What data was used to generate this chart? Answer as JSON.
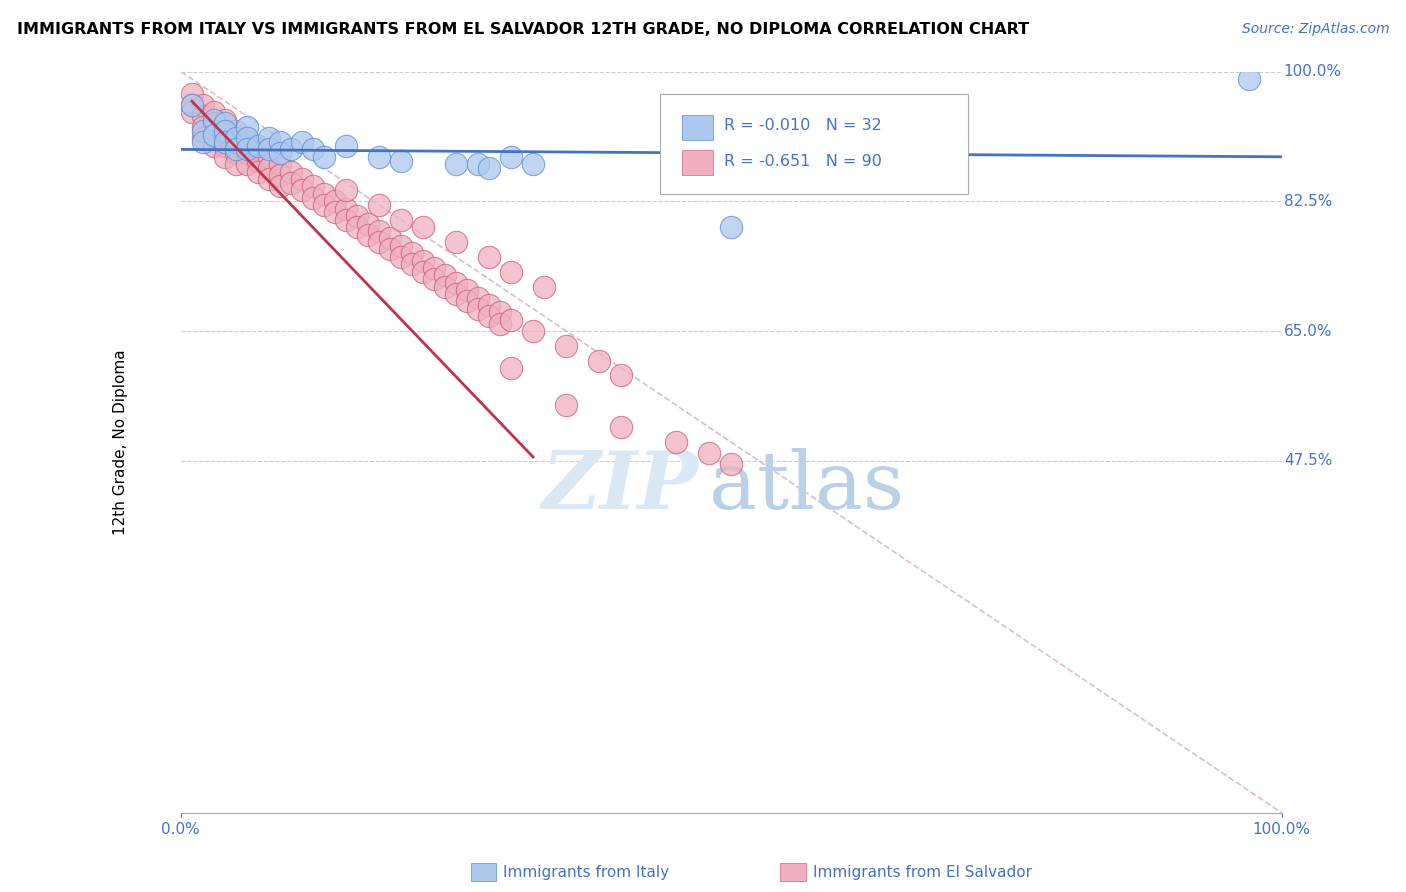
{
  "title": "IMMIGRANTS FROM ITALY VS IMMIGRANTS FROM EL SALVADOR 12TH GRADE, NO DIPLOMA CORRELATION CHART",
  "source": "Source: ZipAtlas.com",
  "ylabel": "12th Grade, No Diploma",
  "ytick_labels": [
    "100.0%",
    "82.5%",
    "65.0%",
    "47.5%"
  ],
  "ytick_values": [
    1.0,
    0.825,
    0.65,
    0.475
  ],
  "xlim": [
    0.0,
    1.0
  ],
  "ylim": [
    0.0,
    1.0
  ],
  "watermark_zip": "ZIP",
  "watermark_atlas": "atlas",
  "legend_italy_r": "R = -0.010",
  "legend_italy_n": "N = 32",
  "legend_salvador_r": "R = -0.651",
  "legend_salvador_n": "N = 90",
  "italy_color": "#adc8ee",
  "italy_edge_color": "#5a8fd4",
  "salvador_color": "#f0b0c0",
  "salvador_edge_color": "#cc607a",
  "italy_trend_color": "#4472c4",
  "salvador_trend_color": "#c0334d",
  "diagonal_color": "#ddbbcc",
  "grid_color": "#cccccc",
  "italy_scatter": [
    [
      0.01,
      0.955
    ],
    [
      0.02,
      0.92
    ],
    [
      0.02,
      0.905
    ],
    [
      0.03,
      0.935
    ],
    [
      0.03,
      0.915
    ],
    [
      0.04,
      0.93
    ],
    [
      0.04,
      0.92
    ],
    [
      0.04,
      0.905
    ],
    [
      0.05,
      0.91
    ],
    [
      0.05,
      0.895
    ],
    [
      0.06,
      0.925
    ],
    [
      0.06,
      0.91
    ],
    [
      0.06,
      0.895
    ],
    [
      0.07,
      0.9
    ],
    [
      0.08,
      0.91
    ],
    [
      0.08,
      0.895
    ],
    [
      0.09,
      0.905
    ],
    [
      0.09,
      0.89
    ],
    [
      0.1,
      0.895
    ],
    [
      0.11,
      0.905
    ],
    [
      0.12,
      0.895
    ],
    [
      0.13,
      0.885
    ],
    [
      0.15,
      0.9
    ],
    [
      0.18,
      0.885
    ],
    [
      0.2,
      0.88
    ],
    [
      0.25,
      0.875
    ],
    [
      0.27,
      0.875
    ],
    [
      0.28,
      0.87
    ],
    [
      0.3,
      0.885
    ],
    [
      0.32,
      0.875
    ],
    [
      0.5,
      0.79
    ],
    [
      0.97,
      0.99
    ]
  ],
  "salvador_scatter": [
    [
      0.01,
      0.97
    ],
    [
      0.01,
      0.955
    ],
    [
      0.01,
      0.945
    ],
    [
      0.02,
      0.955
    ],
    [
      0.02,
      0.94
    ],
    [
      0.02,
      0.925
    ],
    [
      0.02,
      0.91
    ],
    [
      0.03,
      0.945
    ],
    [
      0.03,
      0.93
    ],
    [
      0.03,
      0.915
    ],
    [
      0.03,
      0.9
    ],
    [
      0.04,
      0.935
    ],
    [
      0.04,
      0.915
    ],
    [
      0.04,
      0.9
    ],
    [
      0.04,
      0.885
    ],
    [
      0.05,
      0.92
    ],
    [
      0.05,
      0.905
    ],
    [
      0.05,
      0.89
    ],
    [
      0.05,
      0.875
    ],
    [
      0.06,
      0.905
    ],
    [
      0.06,
      0.89
    ],
    [
      0.06,
      0.875
    ],
    [
      0.07,
      0.895
    ],
    [
      0.07,
      0.88
    ],
    [
      0.07,
      0.865
    ],
    [
      0.08,
      0.885
    ],
    [
      0.08,
      0.87
    ],
    [
      0.08,
      0.855
    ],
    [
      0.09,
      0.875
    ],
    [
      0.09,
      0.86
    ],
    [
      0.09,
      0.845
    ],
    [
      0.1,
      0.865
    ],
    [
      0.1,
      0.85
    ],
    [
      0.11,
      0.855
    ],
    [
      0.11,
      0.84
    ],
    [
      0.12,
      0.845
    ],
    [
      0.12,
      0.83
    ],
    [
      0.13,
      0.835
    ],
    [
      0.13,
      0.82
    ],
    [
      0.14,
      0.825
    ],
    [
      0.14,
      0.81
    ],
    [
      0.15,
      0.815
    ],
    [
      0.15,
      0.8
    ],
    [
      0.16,
      0.805
    ],
    [
      0.16,
      0.79
    ],
    [
      0.17,
      0.795
    ],
    [
      0.17,
      0.78
    ],
    [
      0.18,
      0.785
    ],
    [
      0.18,
      0.77
    ],
    [
      0.19,
      0.775
    ],
    [
      0.19,
      0.76
    ],
    [
      0.2,
      0.765
    ],
    [
      0.2,
      0.75
    ],
    [
      0.21,
      0.755
    ],
    [
      0.21,
      0.74
    ],
    [
      0.22,
      0.745
    ],
    [
      0.22,
      0.73
    ],
    [
      0.23,
      0.735
    ],
    [
      0.23,
      0.72
    ],
    [
      0.24,
      0.725
    ],
    [
      0.24,
      0.71
    ],
    [
      0.25,
      0.715
    ],
    [
      0.25,
      0.7
    ],
    [
      0.26,
      0.705
    ],
    [
      0.26,
      0.69
    ],
    [
      0.27,
      0.695
    ],
    [
      0.27,
      0.68
    ],
    [
      0.28,
      0.685
    ],
    [
      0.28,
      0.67
    ],
    [
      0.29,
      0.675
    ],
    [
      0.29,
      0.66
    ],
    [
      0.3,
      0.665
    ],
    [
      0.15,
      0.84
    ],
    [
      0.18,
      0.82
    ],
    [
      0.2,
      0.8
    ],
    [
      0.22,
      0.79
    ],
    [
      0.25,
      0.77
    ],
    [
      0.28,
      0.75
    ],
    [
      0.3,
      0.73
    ],
    [
      0.33,
      0.71
    ],
    [
      0.32,
      0.65
    ],
    [
      0.35,
      0.63
    ],
    [
      0.38,
      0.61
    ],
    [
      0.4,
      0.59
    ],
    [
      0.3,
      0.6
    ],
    [
      0.35,
      0.55
    ],
    [
      0.4,
      0.52
    ],
    [
      0.45,
      0.5
    ],
    [
      0.48,
      0.485
    ],
    [
      0.5,
      0.47
    ]
  ],
  "italy_trend_x": [
    0.0,
    1.0
  ],
  "italy_trend_y": [
    0.895,
    0.885
  ],
  "salvador_trend_x_start": 0.01,
  "salvador_trend_x_end": 0.32,
  "salvador_trend_y_start": 0.96,
  "salvador_trend_y_end": 0.48
}
